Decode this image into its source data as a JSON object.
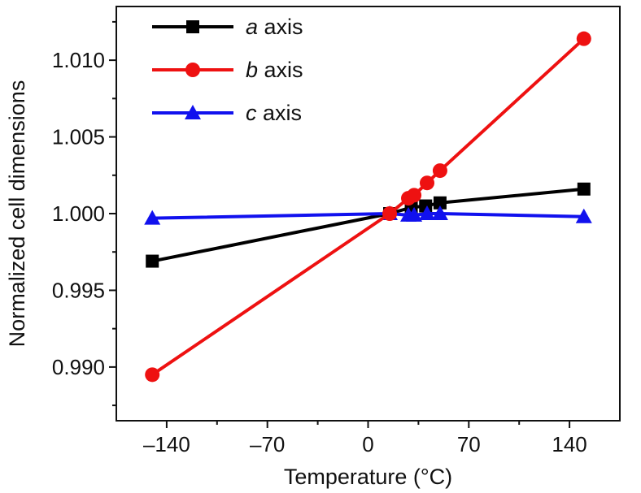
{
  "chart_data": {
    "type": "line",
    "title": "",
    "xlabel": "Temperature (°C)",
    "ylabel": "Normalized cell dimensions",
    "xlim": [
      -175,
      175
    ],
    "ylim": [
      0.9865,
      1.0135
    ],
    "xticks": [
      -140,
      -70,
      0,
      70,
      140
    ],
    "xtick_labels": [
      "–140",
      "–70",
      "0",
      "70",
      "140"
    ],
    "yticks": [
      0.99,
      0.995,
      1.0,
      1.005,
      1.01
    ],
    "ytick_labels": [
      "0.990",
      "0.995",
      "1.000",
      "1.005",
      "1.010"
    ],
    "legend_position": "top-left",
    "grid": false,
    "series": [
      {
        "name": "a axis",
        "italic_symbol": "a",
        "rest": " axis",
        "color": "#000000",
        "marker": "square",
        "x": [
          -150,
          15,
          30,
          40,
          50,
          150
        ],
        "y": [
          0.9969,
          1.0,
          1.0004,
          1.0005,
          1.0007,
          1.0016
        ]
      },
      {
        "name": "b axis",
        "italic_symbol": "b",
        "rest": " axis",
        "color": "#ee1111",
        "marker": "circle",
        "x": [
          -150,
          15,
          28,
          32,
          41,
          50,
          150
        ],
        "y": [
          0.9895,
          1.0,
          1.001,
          1.0012,
          1.002,
          1.0028,
          1.0114
        ]
      },
      {
        "name": "c axis",
        "italic_symbol": "c",
        "rest": " axis",
        "color": "#1111ee",
        "marker": "triangle",
        "x": [
          -150,
          15,
          28,
          32,
          41,
          50,
          150
        ],
        "y": [
          0.9997,
          1.0,
          0.9999,
          0.9999,
          1.0,
          1.0,
          0.9998
        ]
      }
    ]
  }
}
